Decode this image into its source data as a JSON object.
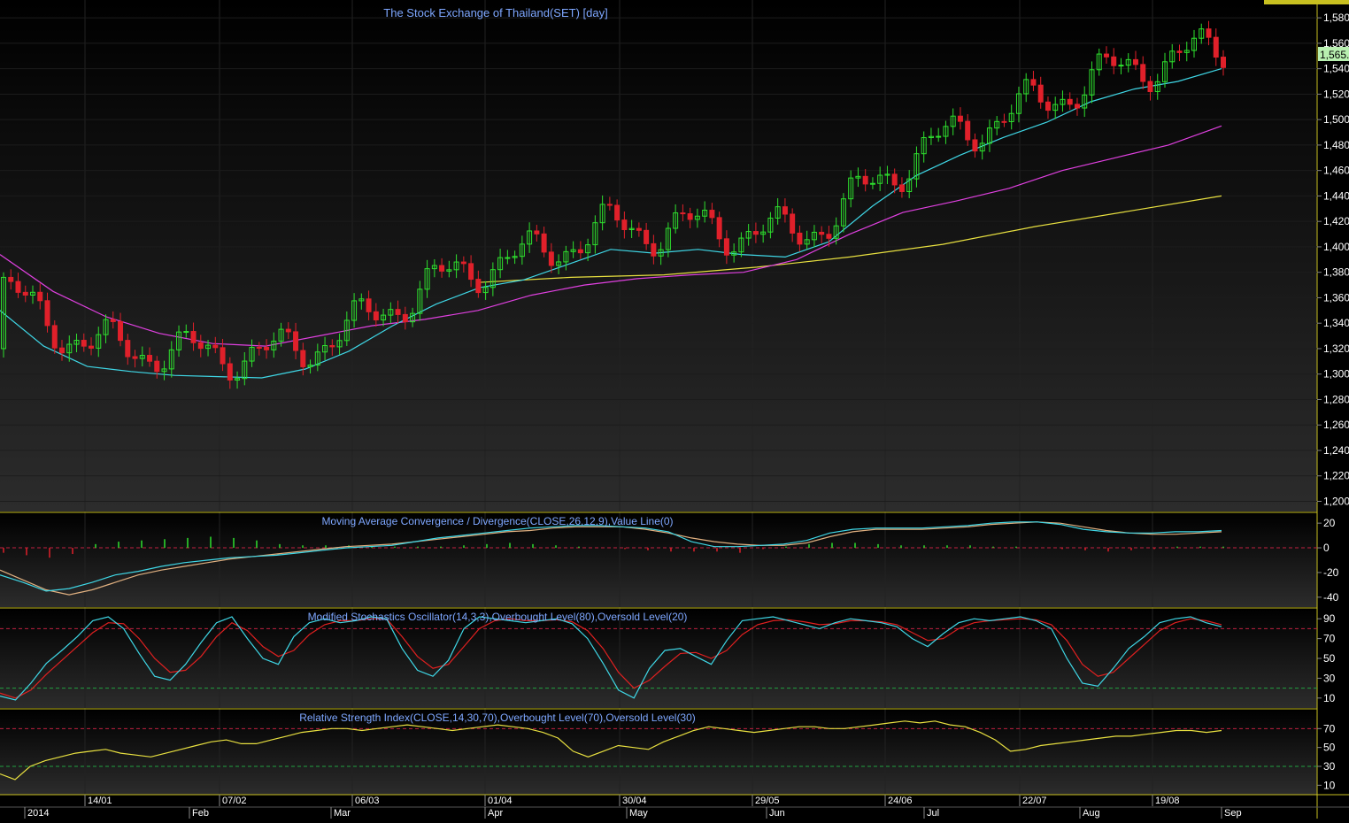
{
  "panels": {
    "price": {
      "title": "The Stock Exchange of Thailand(SET) [day]",
      "y_ticks": [
        "1,200",
        "1,220",
        "1,240",
        "1,260",
        "1,280",
        "1,300",
        "1,320",
        "1,340",
        "1,360",
        "1,380",
        "1,400",
        "1,420",
        "1,440",
        "1,460",
        "1,480",
        "1,500",
        "1,520",
        "1,540",
        "1,560",
        "1,580"
      ],
      "last_value_label": "1,565.",
      "ylim": [
        1192,
        1594
      ]
    },
    "macd": {
      "title": "Moving Average Convergence / Divergence(CLOSE,26,12,9),Value Line(0)",
      "y_ticks": [
        "20",
        "0",
        "-20",
        "-40"
      ],
      "ylim": [
        -48,
        28
      ]
    },
    "stoch": {
      "title": "Modified Stochastics Oscillator(14,3,3),Overbought Level(80),Oversold Level(20)",
      "y_ticks": [
        "90",
        "70",
        "50",
        "30",
        "10"
      ],
      "ylim": [
        0,
        100
      ]
    },
    "rsi": {
      "title": "Relative Strength Index(CLOSE,14,30,70),Overbought Level(70),Oversold Level(30)",
      "y_ticks": [
        "70",
        "50",
        "30",
        "10"
      ],
      "ylim": [
        0,
        90
      ]
    }
  },
  "x_axis": {
    "upper_labels": [
      "14/01",
      "07/02",
      "06/03",
      "01/04",
      "30/04",
      "29/05",
      "24/06",
      "22/07",
      "19/08"
    ],
    "lower_labels": [
      "2014",
      "Feb",
      "Mar",
      "Apr",
      "May",
      "Jun",
      "Jul",
      "Aug",
      "Sep"
    ]
  },
  "colors": {
    "background_top": "#000000",
    "background_bottom": "#2a2a2a",
    "title": "#7ea7ff",
    "up_candle": "#2ee02e",
    "down_candle": "#e0202a",
    "ma_short": "#3fd7e6",
    "ma_mid": "#e040e0",
    "ma_long": "#e8e040",
    "macd_line": "#3fd7e6",
    "macd_signal": "#e0b080",
    "stoch_k": "#3fd7e6",
    "stoch_d": "#e02020",
    "rsi_line": "#e8e040",
    "overbought": "#c02040",
    "oversold": "#20a040",
    "separator": "#c8c020",
    "axis_text": "#ffffff"
  },
  "chart_data": {
    "type": "candlestick",
    "ma_short": [
      1350,
      1322,
      1306,
      1302,
      1299,
      1298,
      1297,
      1304,
      1318,
      1338,
      1355,
      1368,
      1374,
      1386,
      1398,
      1395,
      1398,
      1394,
      1392,
      1404,
      1432,
      1456,
      1472,
      1486,
      1498,
      1514,
      1524,
      1530,
      1540
    ],
    "ma_mid": [
      1394,
      1365,
      1345,
      1332,
      1324,
      1322,
      1330,
      1338,
      1343,
      1350,
      1362,
      1370,
      1375,
      1378,
      1380,
      1390,
      1410,
      1427,
      1436,
      1446,
      1460,
      1470,
      1480,
      1495
    ],
    "ma_long": [
      1372,
      1376,
      1378,
      1384,
      1392,
      1402,
      1416,
      1428,
      1440
    ],
    "macd_line": [
      -22,
      -28,
      -35,
      -33,
      -28,
      -22,
      -19,
      -15,
      -12,
      -10,
      -8,
      -7,
      -6,
      -4,
      -2,
      0,
      1,
      2,
      5,
      8,
      10,
      12,
      14,
      16,
      17,
      18,
      18,
      17,
      16,
      13,
      5,
      1,
      1,
      2,
      3,
      6,
      12,
      15,
      16,
      16,
      16,
      17,
      18,
      20,
      21,
      21,
      19,
      15,
      13,
      12,
      12,
      13,
      13,
      14
    ],
    "macd_signal": [
      -18,
      -26,
      -34,
      -38,
      -34,
      -28,
      -22,
      -18,
      -15,
      -12,
      -9,
      -7,
      -5,
      -3,
      -1,
      1,
      2,
      3,
      5,
      7,
      9,
      11,
      13,
      14,
      16,
      17,
      17,
      17,
      15,
      12,
      8,
      5,
      3,
      2,
      2,
      4,
      9,
      13,
      15,
      15,
      15,
      16,
      17,
      19,
      20,
      21,
      20,
      17,
      14,
      12,
      11,
      11,
      12,
      13
    ],
    "macd_hist": [
      -4,
      -6,
      -8,
      -5,
      3,
      5,
      6,
      7,
      8,
      9,
      8,
      6,
      3,
      2,
      2,
      2,
      1,
      1,
      1,
      1,
      2,
      3,
      4,
      3,
      2,
      1,
      0,
      -1,
      -2,
      -3,
      -3,
      -3,
      -4,
      -1,
      1,
      3,
      4,
      4,
      3,
      2,
      2,
      2,
      2,
      1,
      1,
      0,
      -1,
      -2,
      -3,
      -2,
      -1,
      1,
      1,
      1
    ],
    "stoch_k": [
      12,
      8,
      25,
      45,
      58,
      72,
      88,
      92,
      80,
      55,
      32,
      28,
      44,
      66,
      86,
      92,
      70,
      50,
      44,
      72,
      86,
      90,
      86,
      88,
      92,
      90,
      60,
      38,
      32,
      48,
      80,
      92,
      90,
      88,
      86,
      88,
      90,
      85,
      70,
      45,
      18,
      10,
      40,
      58,
      60,
      52,
      44,
      68,
      88,
      90,
      92,
      88,
      84,
      80,
      86,
      90,
      88,
      86,
      82,
      70,
      62,
      75,
      86,
      90,
      88,
      90,
      92,
      88,
      80,
      50,
      25,
      22,
      40,
      60,
      72,
      86,
      90,
      92,
      86,
      82
    ],
    "stoch_d": [
      15,
      10,
      18,
      34,
      48,
      62,
      76,
      86,
      85,
      70,
      50,
      36,
      38,
      52,
      72,
      86,
      78,
      62,
      52,
      58,
      74,
      84,
      88,
      88,
      90,
      90,
      72,
      52,
      40,
      44,
      62,
      80,
      88,
      90,
      88,
      88,
      89,
      87,
      78,
      60,
      36,
      20,
      28,
      42,
      55,
      56,
      50,
      58,
      74,
      84,
      88,
      89,
      87,
      84,
      85,
      88,
      88,
      87,
      84,
      76,
      68,
      70,
      80,
      86,
      88,
      89,
      90,
      89,
      84,
      68,
      44,
      32,
      36,
      50,
      64,
      78,
      86,
      90,
      88,
      84
    ],
    "rsi": [
      22,
      16,
      30,
      36,
      40,
      44,
      46,
      48,
      44,
      42,
      40,
      44,
      48,
      52,
      56,
      58,
      54,
      54,
      58,
      62,
      66,
      68,
      70,
      70,
      68,
      70,
      72,
      74,
      72,
      70,
      68,
      70,
      72,
      74,
      72,
      70,
      66,
      60,
      46,
      40,
      46,
      52,
      50,
      48,
      56,
      62,
      68,
      72,
      70,
      68,
      66,
      68,
      70,
      72,
      72,
      70,
      70,
      72,
      74,
      76,
      78,
      76,
      78,
      74,
      72,
      66,
      58,
      46,
      48,
      52,
      54,
      56,
      58,
      60,
      62,
      62,
      64,
      66,
      68,
      68,
      66,
      68
    ]
  }
}
